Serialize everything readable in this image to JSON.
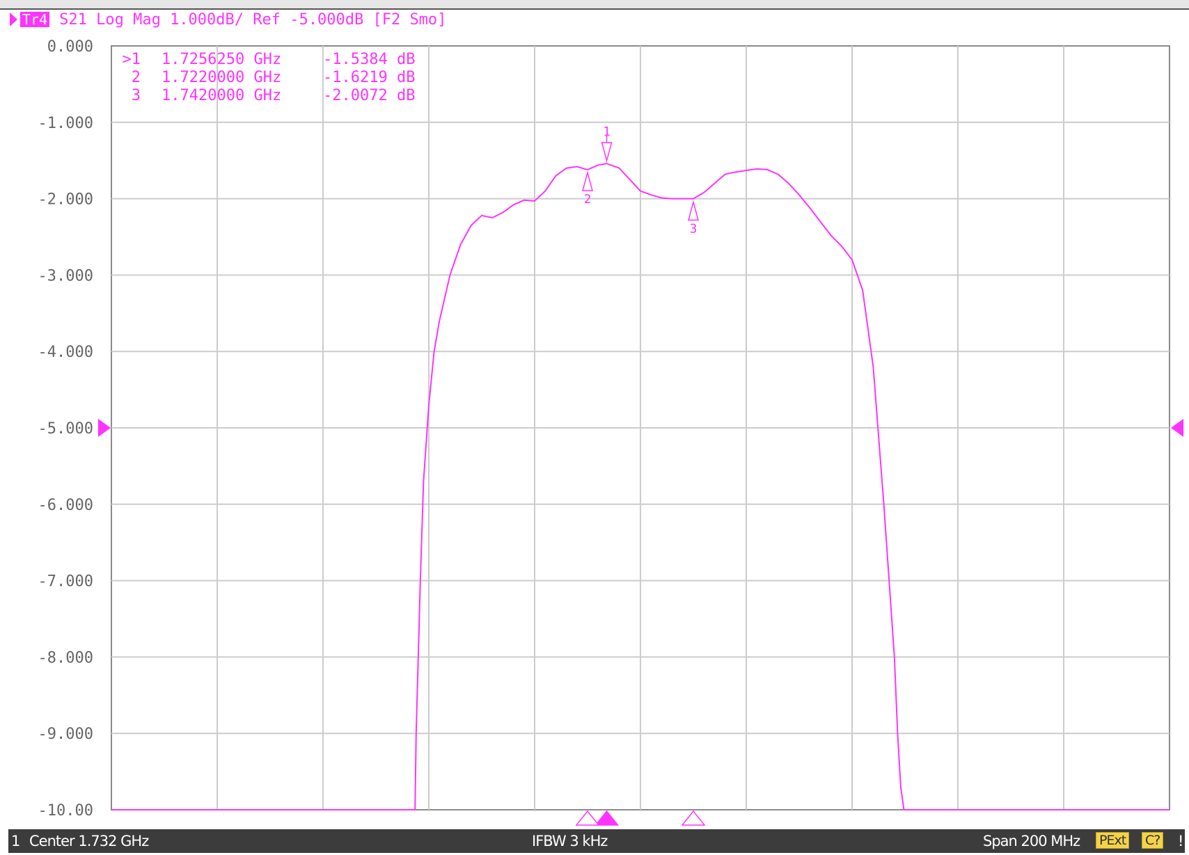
{
  "header": {
    "trace_id": "Tr4",
    "trace_text": "S21 Log Mag 1.000dB/ Ref -5.000dB [F2 Smo]"
  },
  "markers": [
    {
      "prefix": ">1",
      "freq": "1.7256250 GHz",
      "value": "-1.5384 dB"
    },
    {
      "prefix": "2",
      "freq": "1.7220000 GHz",
      "value": "-1.6219 dB"
    },
    {
      "prefix": "3",
      "freq": "1.7420000 GHz",
      "value": "-2.0072 dB"
    }
  ],
  "status": {
    "channel": "1",
    "center": "Center 1.732 GHz",
    "ifbw": "IFBW 3 kHz",
    "span": "Span 200 MHz",
    "badge1": "PExt",
    "badge2": "C?",
    "end_mark": "!"
  },
  "colors": {
    "trace": "#ff33ff",
    "grid": "#cccccc",
    "background": "#ffffff"
  },
  "chart_data": {
    "type": "line",
    "xlabel": "",
    "ylabel": "",
    "x_unit": "GHz",
    "xlim": [
      1.632,
      1.832
    ],
    "ylim": [
      -10,
      0
    ],
    "grid": true,
    "reference_level": -5.0,
    "ytick_labels": [
      "0.000",
      "-1.000",
      "-2.000",
      "-3.000",
      "-4.000",
      "-5.000",
      "-6.000",
      "-7.000",
      "-8.000",
      "-9.000",
      "-10.00"
    ],
    "x_divisions": 10,
    "series": [
      {
        "x": [
          1.632,
          1.6894,
          1.6896,
          1.6904,
          1.691,
          1.692,
          1.693,
          1.694,
          1.696,
          1.698,
          1.7,
          1.702,
          1.704,
          1.706,
          1.708,
          1.71,
          1.712,
          1.714,
          1.716,
          1.718,
          1.72,
          1.722,
          1.724,
          1.7256,
          1.728,
          1.73,
          1.732,
          1.734,
          1.736,
          1.738,
          1.74,
          1.742,
          1.744,
          1.746,
          1.748,
          1.75,
          1.752,
          1.754,
          1.756,
          1.758,
          1.76,
          1.762,
          1.764,
          1.766,
          1.768,
          1.77,
          1.772,
          1.774,
          1.776,
          1.778,
          1.779,
          1.78,
          1.7806,
          1.7812,
          1.7818,
          1.7822,
          1.832
        ],
        "y": [
          -10.0,
          -10.0,
          -9.0,
          -7.0,
          -5.7,
          -4.7,
          -4.0,
          -3.6,
          -3.0,
          -2.6,
          -2.35,
          -2.22,
          -2.25,
          -2.18,
          -2.08,
          -2.02,
          -2.03,
          -1.9,
          -1.7,
          -1.6,
          -1.58,
          -1.62,
          -1.56,
          -1.54,
          -1.6,
          -1.75,
          -1.9,
          -1.95,
          -1.99,
          -2.0,
          -2.0,
          -2.0,
          -1.92,
          -1.8,
          -1.68,
          -1.65,
          -1.63,
          -1.61,
          -1.62,
          -1.68,
          -1.8,
          -1.95,
          -2.12,
          -2.3,
          -2.48,
          -2.62,
          -2.8,
          -3.2,
          -4.2,
          -6.0,
          -7.0,
          -8.0,
          -9.0,
          -9.7,
          -10.0,
          -10.0,
          -10.0
        ]
      }
    ],
    "markers": [
      {
        "id": "1",
        "x": 1.725625,
        "y": -1.5384,
        "active": true
      },
      {
        "id": "2",
        "x": 1.722,
        "y": -1.6219,
        "active": false
      },
      {
        "id": "3",
        "x": 1.742,
        "y": -2.0072,
        "active": false
      }
    ]
  }
}
